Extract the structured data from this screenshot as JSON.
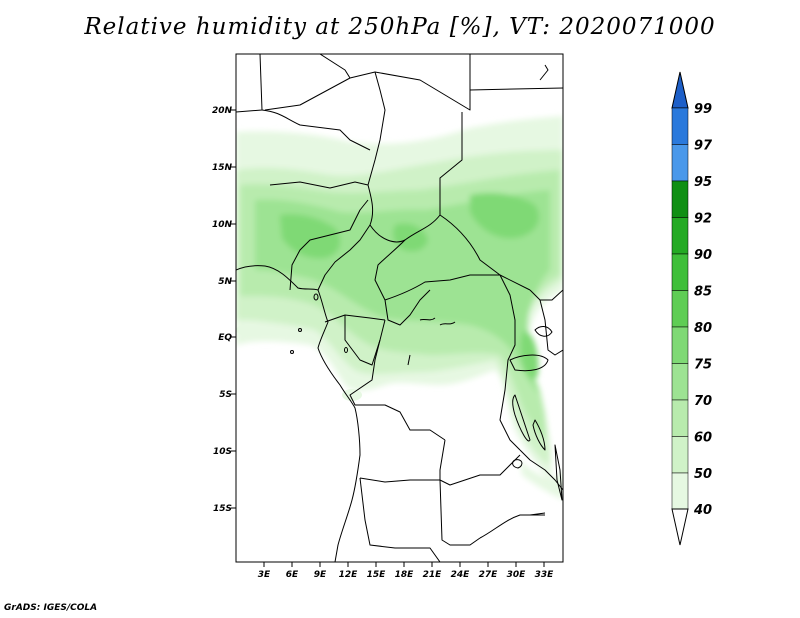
{
  "title": "Relative humidity at 250hPa [%], VT: 2020071000",
  "credit": "GrADS: IGES/COLA",
  "map": {
    "lon_range": [
      0,
      35
    ],
    "lat_range": [
      -19.5,
      24
    ],
    "lat_ticks": [
      "20N",
      "15N",
      "10N",
      "5N",
      "EQ",
      "5S",
      "10S",
      "15S"
    ],
    "lon_ticks": [
      "3E",
      "6E",
      "9E",
      "12E",
      "15E",
      "18E",
      "21E",
      "24E",
      "27E",
      "30E",
      "33E"
    ]
  },
  "colorbar": {
    "levels": [
      "40",
      "50",
      "60",
      "70",
      "75",
      "80",
      "85",
      "90",
      "92",
      "95",
      "97",
      "99"
    ],
    "colors": {
      "below_40": "#ffffff",
      "40-50": "#e6f8e2",
      "50-60": "#d0f2c8",
      "60-70": "#b8ebad",
      "70-75": "#9de393",
      "75-80": "#7fd975",
      "80-85": "#5fcd55",
      "85-90": "#3fbf3a",
      "90-92": "#24aa24",
      "92-95": "#108f14",
      "95-97": "#4a98ea",
      "97-99": "#2a79dc",
      "above_99": "#1d5fc8"
    }
  }
}
